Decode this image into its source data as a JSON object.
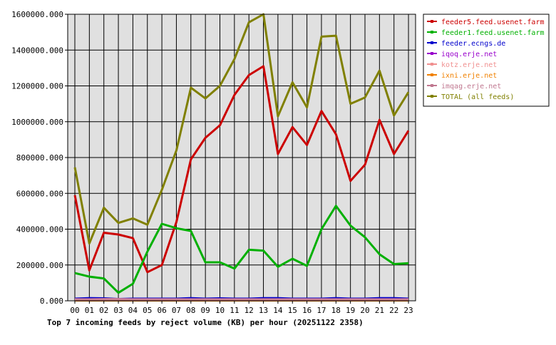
{
  "chart_data": {
    "type": "line",
    "title": "Top 7 incoming feeds by reject volume (KB) per hour (20251122 2358)",
    "xlabel": "",
    "ylabel": "",
    "categories": [
      "00",
      "01",
      "02",
      "03",
      "04",
      "05",
      "06",
      "07",
      "08",
      "09",
      "10",
      "11",
      "12",
      "13",
      "14",
      "15",
      "16",
      "17",
      "18",
      "19",
      "20",
      "21",
      "22",
      "23"
    ],
    "ylim": [
      0,
      1600000
    ],
    "yticks": [
      "0.000",
      "200000.000",
      "400000.000",
      "600000.000",
      "800000.000",
      "1000000.000",
      "1200000.000",
      "1400000.000",
      "1600000.000"
    ],
    "grid": true,
    "legend_position": "right",
    "series": [
      {
        "name": "feeder5.feed.usenet.farm",
        "color": "#cc0000",
        "values": [
          590000,
          170000,
          380000,
          370000,
          350000,
          160000,
          200000,
          440000,
          790000,
          910000,
          980000,
          1150000,
          1260000,
          1310000,
          820000,
          970000,
          870000,
          1060000,
          930000,
          670000,
          760000,
          1010000,
          820000,
          950000
        ]
      },
      {
        "name": "feeder1.feed.usenet.farm",
        "color": "#00b000",
        "values": [
          155000,
          135000,
          125000,
          45000,
          95000,
          275000,
          430000,
          405000,
          390000,
          215000,
          215000,
          180000,
          285000,
          280000,
          190000,
          235000,
          195000,
          400000,
          530000,
          420000,
          355000,
          260000,
          205000,
          210000
        ]
      },
      {
        "name": "feeder.ecngs.de",
        "color": "#0000cc",
        "values": [
          12000,
          15000,
          14000,
          10000,
          12000,
          12000,
          12000,
          12000,
          15000,
          12000,
          14000,
          12000,
          12000,
          15000,
          15000,
          12000,
          12000,
          12000,
          15000,
          12000,
          12000,
          15000,
          15000,
          12000
        ]
      },
      {
        "name": "iqoq.erje.net",
        "color": "#9900cc",
        "values": [
          3000,
          3000,
          3000,
          3000,
          3000,
          3000,
          3000,
          3000,
          3000,
          3000,
          3000,
          3000,
          3000,
          3000,
          3000,
          3000,
          3000,
          3000,
          3000,
          3000,
          3000,
          3000,
          3000,
          3000
        ]
      },
      {
        "name": "kotz.erje.net",
        "color": "#f09090",
        "values": [
          8000,
          8000,
          9000,
          9000,
          8000,
          8000,
          8000,
          8000,
          8000,
          8000,
          8000,
          8000,
          8000,
          8000,
          8000,
          8000,
          8000,
          8000,
          8000,
          8000,
          8000,
          8000,
          8000,
          8000
        ]
      },
      {
        "name": "ixni.erje.net",
        "color": "#f08000",
        "values": [
          2000,
          2000,
          2000,
          2000,
          2000,
          2000,
          2000,
          2000,
          2000,
          2000,
          2000,
          2000,
          2000,
          2000,
          2000,
          2000,
          2000,
          2000,
          2000,
          2000,
          2000,
          2000,
          2000,
          2000
        ]
      },
      {
        "name": "imqag.erje.net",
        "color": "#c07890",
        "values": [
          4000,
          4000,
          4000,
          4000,
          4000,
          4000,
          4000,
          4000,
          4000,
          4000,
          4000,
          4000,
          4000,
          4000,
          4000,
          4000,
          4000,
          4000,
          4000,
          4000,
          4000,
          4000,
          4000,
          4000
        ]
      },
      {
        "name": "TOTAL (all feeds)",
        "color": "#808000",
        "values": [
          745000,
          320000,
          520000,
          435000,
          460000,
          425000,
          620000,
          840000,
          1190000,
          1130000,
          1200000,
          1350000,
          1555000,
          1600000,
          1030000,
          1220000,
          1080000,
          1475000,
          1480000,
          1100000,
          1135000,
          1285000,
          1035000,
          1165000
        ]
      }
    ]
  }
}
